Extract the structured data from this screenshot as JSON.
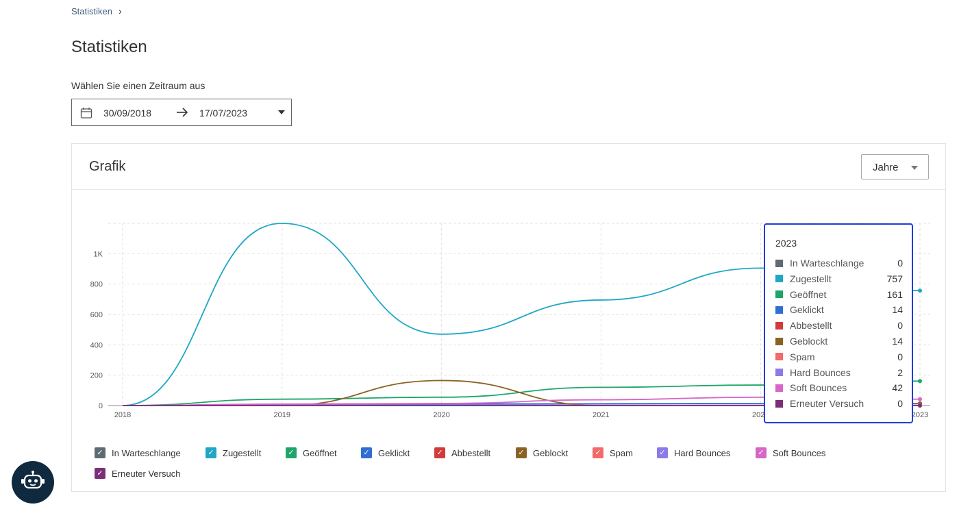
{
  "breadcrumb": {
    "item": "Statistiken"
  },
  "page": {
    "title": "Statistiken"
  },
  "date_range": {
    "label": "Wählen Sie einen Zeitraum aus",
    "from": "30/09/2018",
    "to": "17/07/2023"
  },
  "card": {
    "title": "Grafik",
    "period": "Jahre"
  },
  "colors": {
    "In Warteschlange": "#5f6b73",
    "Zugestellt": "#1fa7c5",
    "Geöffnet": "#1fa56a",
    "Geklickt": "#2f6fd1",
    "Abbestellt": "#d23b3b",
    "Geblockt": "#8a6323",
    "Spam": "#f26a6a",
    "Hard Bounces": "#8b7be6",
    "Soft Bounces": "#d766c7",
    "Erneuter Versuch": "#7b2f77"
  },
  "chart_data": {
    "type": "line",
    "x": [
      "2018",
      "2019",
      "2020",
      "2021",
      "2022",
      "2023"
    ],
    "y_ticks": [
      "0",
      "200",
      "400",
      "600",
      "800",
      "1K"
    ],
    "ylim": [
      0,
      1200
    ],
    "grid": true,
    "legend_position": "bottom",
    "series": [
      {
        "name": "In Warteschlange",
        "values": [
          0,
          0,
          0,
          0,
          0,
          0
        ]
      },
      {
        "name": "Zugestellt",
        "values": [
          0,
          1200,
          470,
          695,
          905,
          757
        ]
      },
      {
        "name": "Geöffnet",
        "values": [
          0,
          42,
          55,
          120,
          135,
          161
        ]
      },
      {
        "name": "Geklickt",
        "values": [
          0,
          8,
          10,
          12,
          14,
          14
        ]
      },
      {
        "name": "Abbestellt",
        "values": [
          0,
          0,
          0,
          0,
          0,
          0
        ]
      },
      {
        "name": "Geblockt",
        "values": [
          0,
          0,
          165,
          0,
          0,
          14
        ]
      },
      {
        "name": "Spam",
        "values": [
          0,
          0,
          0,
          0,
          0,
          0
        ]
      },
      {
        "name": "Hard Bounces",
        "values": [
          0,
          2,
          2,
          2,
          2,
          2
        ]
      },
      {
        "name": "Soft Bounces",
        "values": [
          0,
          10,
          14,
          38,
          55,
          42
        ]
      },
      {
        "name": "Erneuter Versuch",
        "values": [
          0,
          0,
          0,
          0,
          0,
          0
        ]
      }
    ]
  },
  "tooltip": {
    "title": "2023",
    "rows": [
      {
        "name": "In Warteschlange",
        "value": "0"
      },
      {
        "name": "Zugestellt",
        "value": "757"
      },
      {
        "name": "Geöffnet",
        "value": "161"
      },
      {
        "name": "Geklickt",
        "value": "14"
      },
      {
        "name": "Abbestellt",
        "value": "0"
      },
      {
        "name": "Geblockt",
        "value": "14"
      },
      {
        "name": "Spam",
        "value": "0"
      },
      {
        "name": "Hard Bounces",
        "value": "2"
      },
      {
        "name": "Soft Bounces",
        "value": "42"
      },
      {
        "name": "Erneuter Versuch",
        "value": "0"
      }
    ]
  },
  "legend": [
    "In Warteschlange",
    "Zugestellt",
    "Geöffnet",
    "Geklickt",
    "Abbestellt",
    "Geblockt",
    "Spam",
    "Hard Bounces",
    "Soft Bounces",
    "Erneuter Versuch"
  ],
  "icons": {
    "calendar": "calendar-icon",
    "arrow": "arrow-right-icon",
    "chatbot": "robot-icon",
    "check": "✓"
  }
}
